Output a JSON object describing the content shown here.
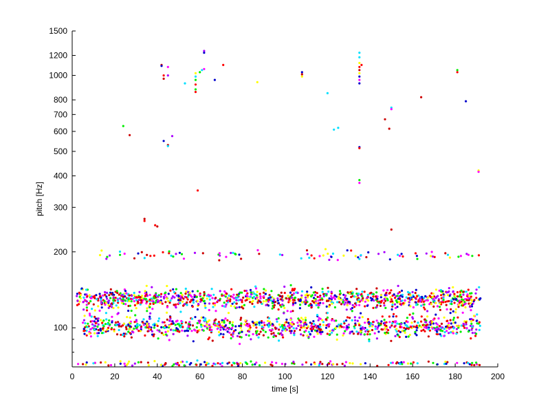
{
  "chart_data": {
    "type": "scatter",
    "title": "",
    "xlabel": "time [s]",
    "ylabel": "pitch [Hz]",
    "xlim": [
      0,
      200
    ],
    "ylim": [
      70,
      1500
    ],
    "yscale": "log",
    "grid": false,
    "x_ticks": [
      0,
      20,
      40,
      60,
      80,
      100,
      120,
      140,
      160,
      180,
      200
    ],
    "x_tick_labels": [
      "0",
      "20",
      "40",
      "60",
      "80",
      "100",
      "120",
      "140",
      "160",
      "180",
      "200"
    ],
    "y_ticks": [
      100,
      200,
      300,
      400,
      500,
      600,
      700,
      800,
      1000,
      1200,
      1500
    ],
    "y_tick_labels": [
      "100",
      "200",
      "300",
      "400",
      "500",
      "600",
      "700",
      "800",
      "1000",
      "1200",
      "1500"
    ],
    "y_minor_ticks": [
      70,
      80,
      90
    ],
    "colors": [
      "#ff0000",
      "#0000cc",
      "#00ee00",
      "#ff00ff",
      "#00e0ff",
      "#ffff00",
      "#aa00ff",
      "#cc0000"
    ],
    "bands": [
      {
        "name": "dense band ~130 Hz",
        "center_hz": 130,
        "spread": 0.045,
        "x_range": [
          2,
          192
        ],
        "count": 1100
      },
      {
        "name": "dense band ~100 Hz",
        "center_hz": 101,
        "spread": 0.05,
        "x_range": [
          5,
          192
        ],
        "count": 1000
      },
      {
        "name": "floor band ~72 Hz",
        "center_hz": 72,
        "spread": 0.012,
        "x_range": [
          2,
          192
        ],
        "count": 160
      },
      {
        "name": "band ~195 Hz",
        "center_hz": 195,
        "spread": 0.02,
        "x_range": [
          12,
          192
        ],
        "count": 90
      }
    ],
    "outliers": [
      {
        "x": 24,
        "y": 630
      },
      {
        "x": 27,
        "y": 580
      },
      {
        "x": 34,
        "y": 270
      },
      {
        "x": 34,
        "y": 265
      },
      {
        "x": 39,
        "y": 255
      },
      {
        "x": 40,
        "y": 252
      },
      {
        "x": 42,
        "y": 1100
      },
      {
        "x": 42,
        "y": 1090
      },
      {
        "x": 43,
        "y": 1000
      },
      {
        "x": 43,
        "y": 970
      },
      {
        "x": 43,
        "y": 550
      },
      {
        "x": 45,
        "y": 1080
      },
      {
        "x": 45,
        "y": 1000
      },
      {
        "x": 45,
        "y": 530
      },
      {
        "x": 45,
        "y": 525
      },
      {
        "x": 47,
        "y": 575
      },
      {
        "x": 53,
        "y": 930
      },
      {
        "x": 58,
        "y": 1020
      },
      {
        "x": 58,
        "y": 990
      },
      {
        "x": 58,
        "y": 960
      },
      {
        "x": 58,
        "y": 920
      },
      {
        "x": 58,
        "y": 880
      },
      {
        "x": 58,
        "y": 860
      },
      {
        "x": 59,
        "y": 350
      },
      {
        "x": 60,
        "y": 1030
      },
      {
        "x": 61,
        "y": 1050
      },
      {
        "x": 62,
        "y": 1250
      },
      {
        "x": 62,
        "y": 1230
      },
      {
        "x": 62,
        "y": 1060
      },
      {
        "x": 67,
        "y": 960
      },
      {
        "x": 71,
        "y": 1100
      },
      {
        "x": 87,
        "y": 940
      },
      {
        "x": 108,
        "y": 1030
      },
      {
        "x": 108,
        "y": 1010
      },
      {
        "x": 108,
        "y": 990
      },
      {
        "x": 120,
        "y": 850
      },
      {
        "x": 123,
        "y": 610
      },
      {
        "x": 125,
        "y": 620
      },
      {
        "x": 135,
        "y": 1230
      },
      {
        "x": 135,
        "y": 1180
      },
      {
        "x": 135,
        "y": 1120
      },
      {
        "x": 135,
        "y": 1080
      },
      {
        "x": 135,
        "y": 1050
      },
      {
        "x": 135,
        "y": 1020
      },
      {
        "x": 135,
        "y": 990
      },
      {
        "x": 135,
        "y": 960
      },
      {
        "x": 135,
        "y": 930
      },
      {
        "x": 135,
        "y": 520
      },
      {
        "x": 135,
        "y": 515
      },
      {
        "x": 135,
        "y": 385
      },
      {
        "x": 135,
        "y": 375
      },
      {
        "x": 136,
        "y": 1100
      },
      {
        "x": 147,
        "y": 670
      },
      {
        "x": 149,
        "y": 615
      },
      {
        "x": 150,
        "y": 745
      },
      {
        "x": 150,
        "y": 735
      },
      {
        "x": 150,
        "y": 245
      },
      {
        "x": 164,
        "y": 820
      },
      {
        "x": 181,
        "y": 1050
      },
      {
        "x": 181,
        "y": 1030
      },
      {
        "x": 185,
        "y": 790
      },
      {
        "x": 191,
        "y": 420
      },
      {
        "x": 191,
        "y": 415
      }
    ]
  }
}
